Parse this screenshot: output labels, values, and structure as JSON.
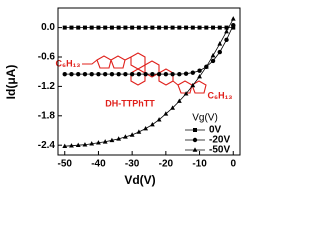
{
  "chart_data": {
    "type": "line",
    "xlabel": "Vd(V)",
    "ylabel": "Id(μA)",
    "legend_title": "Vg(V)",
    "legend": "lower right",
    "x": [
      -50,
      -48,
      -46,
      -44,
      -42,
      -40,
      -38,
      -36,
      -34,
      -32,
      -30,
      -28,
      -26,
      -24,
      -22,
      -20,
      -18,
      -16,
      -14,
      -12,
      -10,
      -8,
      -6,
      -4,
      -2,
      0
    ],
    "series": [
      {
        "name": "0V",
        "color": "#000000",
        "marker": "square",
        "values": [
          0,
          0,
          0,
          0,
          0,
          0,
          0,
          0,
          0,
          0,
          0,
          0,
          0,
          0,
          0,
          0,
          0,
          0,
          0,
          0,
          0,
          0,
          0,
          0,
          0,
          0
        ]
      },
      {
        "name": "-20V",
        "color": "#000000",
        "marker": "circle",
        "values": [
          -0.95,
          -0.95,
          -0.95,
          -0.95,
          -0.95,
          -0.95,
          -0.95,
          -0.95,
          -0.95,
          -0.95,
          -0.95,
          -0.95,
          -0.95,
          -0.95,
          -0.95,
          -0.95,
          -0.95,
          -0.95,
          -0.94,
          -0.92,
          -0.88,
          -0.8,
          -0.68,
          -0.5,
          -0.25,
          0.05
        ]
      },
      {
        "name": "-50V",
        "color": "#000000",
        "marker": "triangle",
        "values": [
          -2.42,
          -2.41,
          -2.4,
          -2.39,
          -2.37,
          -2.35,
          -2.33,
          -2.3,
          -2.27,
          -2.23,
          -2.19,
          -2.13,
          -2.06,
          -1.98,
          -1.88,
          -1.76,
          -1.64,
          -1.5,
          -1.35,
          -1.18,
          -1.0,
          -0.8,
          -0.57,
          -0.33,
          -0.08,
          0.18
        ]
      }
    ],
    "xlim": [
      -52,
      2
    ],
    "xticks": [
      -50,
      -40,
      -30,
      -20,
      -10,
      0
    ],
    "ylim": [
      -2.6,
      0.4
    ],
    "yticks": [
      {
        "value": 0,
        "label": "0.0"
      },
      -0.6,
      -1.2,
      -1.8,
      -2.4
    ]
  },
  "inset": {
    "left_group": "C₆H₁₃",
    "right_group": "C₆H₁₃",
    "name": "DH-TTPhTT"
  }
}
